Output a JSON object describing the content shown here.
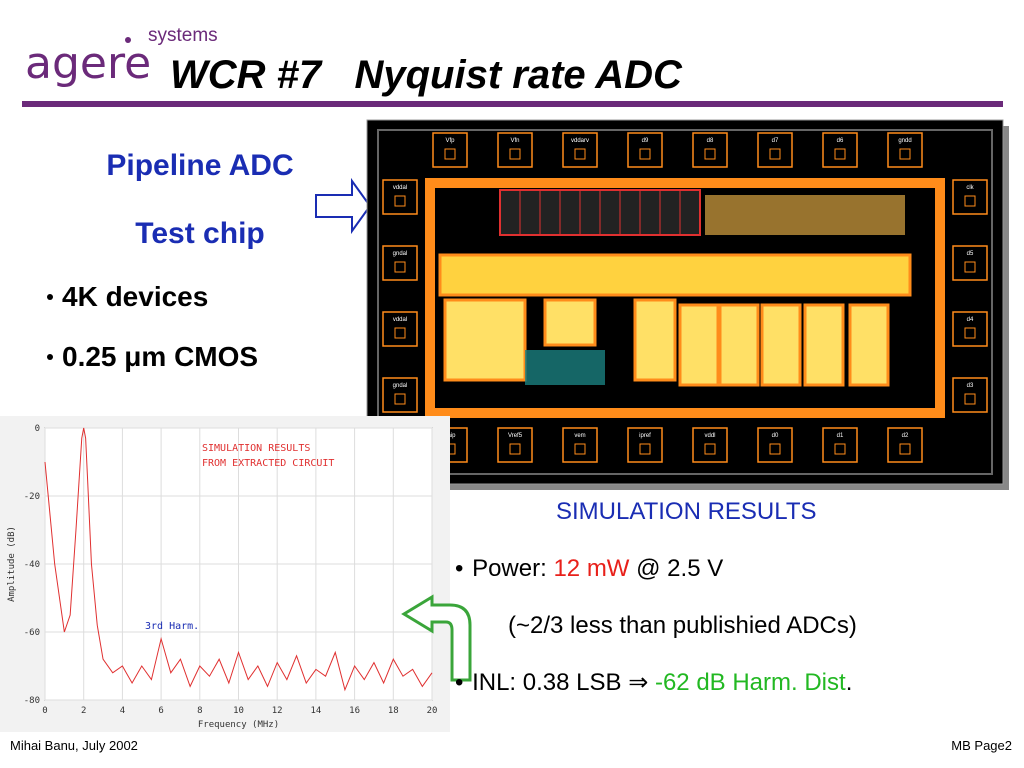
{
  "header": {
    "logo": "agere",
    "logo_sub": "systems",
    "title": "WCR #7   Nyquist rate ADC"
  },
  "left_text": {
    "heading": [
      "Pipeline ADC",
      "Test chip"
    ],
    "bullets": [
      "4K devices",
      "0.25 μm CMOS"
    ]
  },
  "chip": {
    "top_pads": [
      "Vfp",
      "Vfn",
      "vddarv",
      "d9",
      "d8",
      "d7",
      "d6",
      "gndd"
    ],
    "left_pads": [
      "vddal",
      "gndal",
      "vddal",
      "gndal"
    ],
    "right_pads": [
      "clk",
      "d5",
      "d4",
      "d3"
    ],
    "bottom_pads": [
      "vaip",
      "Vref5",
      "vem",
      "ipref",
      "vddl",
      "d0",
      "d1",
      "d2"
    ]
  },
  "chart_data": {
    "type": "line",
    "xlabel": "Frequency (MHz)",
    "ylabel": "Amplitude (dB)",
    "annotations": [
      "SIMULATION RESULTS",
      "FROM EXTRACTED CIRCUIT",
      "3rd Harm."
    ],
    "x": [
      0,
      0.2,
      0.5,
      0.8,
      1.0,
      1.3,
      1.6,
      1.8,
      1.9,
      2.0,
      2.1,
      2.2,
      2.4,
      2.7,
      3.0,
      3.5,
      4,
      4.5,
      5,
      5.5,
      6,
      6.5,
      7,
      7.5,
      8,
      8.5,
      9,
      9.5,
      10,
      10.5,
      11,
      11.5,
      12,
      12.5,
      13,
      13.5,
      14,
      14.5,
      15,
      15.5,
      16,
      16.5,
      17,
      17.5,
      18,
      18.5,
      19,
      19.5,
      20
    ],
    "series": [
      {
        "color": "#e03030",
        "values": [
          -10,
          -22,
          -40,
          -52,
          -60,
          -55,
          -30,
          -12,
          -3,
          0,
          -3,
          -15,
          -40,
          -58,
          -68,
          -72,
          -70,
          -75,
          -70,
          -74,
          -62,
          -72,
          -68,
          -76,
          -70,
          -73,
          -68,
          -75,
          -66,
          -74,
          -70,
          -76,
          -69,
          -74,
          -67,
          -75,
          -71,
          -73,
          -66,
          -77,
          -70,
          -74,
          -69,
          -75,
          -68,
          -73,
          -71,
          -76,
          -72
        ]
      }
    ],
    "xlim": [
      0,
      20
    ],
    "xticks": [
      0,
      2,
      4,
      6,
      8,
      10,
      12,
      14,
      16,
      18,
      20
    ],
    "ylim": [
      -80,
      0
    ],
    "yticks": [
      0,
      -20,
      -40,
      -60,
      -80
    ],
    "grid": true
  },
  "results": {
    "heading": "SIMULATION RESULTS",
    "power": [
      "Power:",
      "12 mW",
      "@ 2.5 V"
    ],
    "note": "(~2/3 less than publishied ADCs)",
    "inl": [
      "INL: 0.38 LSB",
      "⇒",
      "-62 dB Harm. Dist",
      "."
    ]
  },
  "footer": {
    "left": "Mihai Banu, July 2002",
    "right": "MB Page2"
  }
}
